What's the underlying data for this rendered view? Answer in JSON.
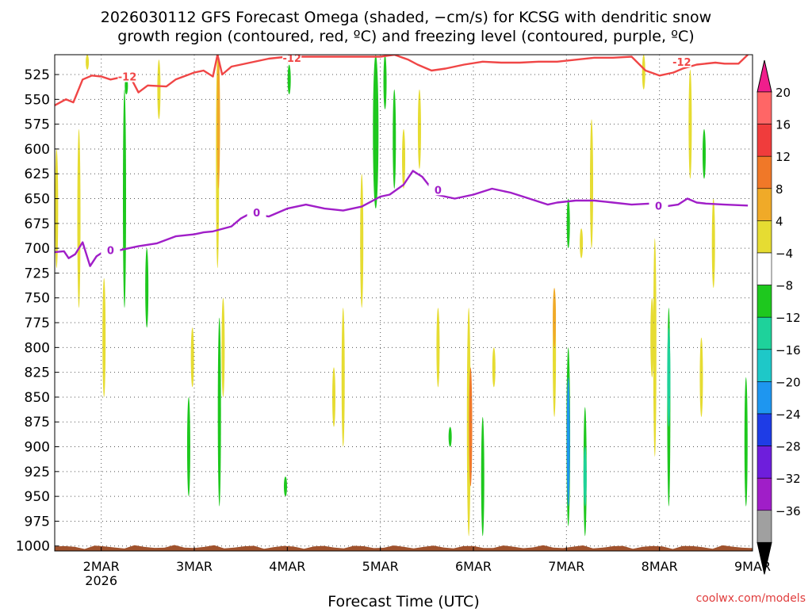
{
  "chart_data": {
    "type": "heatmap",
    "title_line1": "2026030112 GFS Forecast Omega (shaded, −cm/s) for KCSG with dendritic snow",
    "title_line2": "growth region (contoured, red, ºC) and freezing level (contoured, purple, ºC)",
    "xlabel": "Forecast Time (UTC)",
    "credit": "coolwx.com/models",
    "y_ticks": [
      525,
      550,
      575,
      600,
      625,
      650,
      675,
      700,
      725,
      750,
      775,
      800,
      825,
      850,
      875,
      900,
      925,
      950,
      975,
      1000
    ],
    "ylim": [
      1005,
      505
    ],
    "x_ticks": [
      {
        "t": 0.5,
        "label": "2MAR",
        "sub": "2026"
      },
      {
        "t": 1.5,
        "label": "3MAR",
        "sub": ""
      },
      {
        "t": 2.5,
        "label": "4MAR",
        "sub": ""
      },
      {
        "t": 3.5,
        "label": "5MAR",
        "sub": ""
      },
      {
        "t": 4.5,
        "label": "6MAR",
        "sub": ""
      },
      {
        "t": 5.5,
        "label": "7MAR",
        "sub": ""
      },
      {
        "t": 6.5,
        "label": "8MAR",
        "sub": ""
      },
      {
        "t": 7.5,
        "label": "9MAR",
        "sub": ""
      }
    ],
    "xlim": [
      0,
      7.5
    ],
    "colorbar": {
      "labels": [
        "20",
        "16",
        "12",
        "8",
        "4",
        "−4",
        "−8",
        "−12",
        "−16",
        "−20",
        "−24",
        "−28",
        "−32",
        "−36"
      ],
      "colors": [
        "#ff6666",
        "#f03c3c",
        "#f07828",
        "#f0aa28",
        "#e6dc32",
        "#ffffff",
        "#1ec81e",
        "#1ed29b",
        "#1ec8c8",
        "#1e96f0",
        "#1e3ce6",
        "#6e1edc",
        "#a01ec8",
        "#a0a0a0"
      ],
      "top_arrow": "#f01e8c",
      "bottom_arrow": "#000000"
    },
    "series": [
      {
        "name": "-12",
        "color": "#f04646",
        "points": [
          [
            0.0,
            556
          ],
          [
            0.12,
            550
          ],
          [
            0.2,
            553
          ],
          [
            0.3,
            530
          ],
          [
            0.4,
            526
          ],
          [
            0.5,
            527
          ],
          [
            0.6,
            530
          ],
          [
            0.8,
            526
          ],
          [
            0.85,
            534
          ],
          [
            0.9,
            543
          ],
          [
            1.0,
            536
          ],
          [
            1.2,
            537
          ],
          [
            1.3,
            530
          ],
          [
            1.5,
            523
          ],
          [
            1.6,
            521
          ],
          [
            1.7,
            527
          ],
          [
            1.75,
            505
          ],
          [
            1.8,
            525
          ],
          [
            1.9,
            517
          ],
          [
            2.0,
            515
          ],
          [
            2.1,
            513
          ],
          [
            2.3,
            509
          ],
          [
            2.5,
            507
          ],
          [
            2.7,
            507
          ],
          [
            2.9,
            507
          ],
          [
            3.1,
            507
          ],
          [
            3.3,
            507
          ],
          [
            3.5,
            507
          ],
          [
            3.65,
            505
          ],
          [
            3.8,
            510
          ],
          [
            3.9,
            515
          ],
          [
            4.05,
            521
          ],
          [
            4.2,
            519
          ],
          [
            4.4,
            515
          ],
          [
            4.6,
            512
          ],
          [
            4.8,
            513
          ],
          [
            5.0,
            513
          ],
          [
            5.2,
            512
          ],
          [
            5.4,
            512
          ],
          [
            5.6,
            510
          ],
          [
            5.8,
            508
          ],
          [
            6.0,
            508
          ],
          [
            6.2,
            507
          ],
          [
            6.35,
            521
          ],
          [
            6.5,
            526
          ],
          [
            6.65,
            523
          ],
          [
            6.75,
            519
          ],
          [
            6.9,
            515
          ],
          [
            7.1,
            513
          ],
          [
            7.2,
            514
          ],
          [
            7.35,
            514
          ],
          [
            7.45,
            505
          ]
        ],
        "labels": [
          {
            "t": 0.78,
            "p": 527,
            "text": "-12"
          },
          {
            "t": 2.55,
            "p": 508,
            "text": "-12"
          },
          {
            "t": 6.74,
            "p": 512,
            "text": "-12"
          }
        ]
      },
      {
        "name": "0",
        "color": "#a01ec8",
        "points": [
          [
            0.0,
            704
          ],
          [
            0.1,
            703
          ],
          [
            0.15,
            710
          ],
          [
            0.22,
            706
          ],
          [
            0.3,
            694
          ],
          [
            0.38,
            718
          ],
          [
            0.45,
            708
          ],
          [
            0.55,
            702
          ],
          [
            0.7,
            702
          ],
          [
            0.9,
            698
          ],
          [
            1.1,
            695
          ],
          [
            1.3,
            688
          ],
          [
            1.5,
            686
          ],
          [
            1.6,
            684
          ],
          [
            1.7,
            683
          ],
          [
            1.9,
            678
          ],
          [
            2.0,
            670
          ],
          [
            2.1,
            665
          ],
          [
            2.3,
            668
          ],
          [
            2.5,
            660
          ],
          [
            2.7,
            656
          ],
          [
            2.9,
            660
          ],
          [
            3.1,
            662
          ],
          [
            3.3,
            658
          ],
          [
            3.5,
            648
          ],
          [
            3.6,
            646
          ],
          [
            3.75,
            636
          ],
          [
            3.85,
            622
          ],
          [
            3.95,
            628
          ],
          [
            4.05,
            640
          ],
          [
            4.1,
            646
          ],
          [
            4.3,
            650
          ],
          [
            4.5,
            646
          ],
          [
            4.7,
            640
          ],
          [
            4.9,
            644
          ],
          [
            5.1,
            650
          ],
          [
            5.3,
            656
          ],
          [
            5.4,
            654
          ],
          [
            5.6,
            652
          ],
          [
            5.8,
            652
          ],
          [
            6.0,
            654
          ],
          [
            6.2,
            656
          ],
          [
            6.4,
            655
          ],
          [
            6.55,
            658
          ],
          [
            6.7,
            656
          ],
          [
            6.8,
            650
          ],
          [
            6.9,
            654
          ],
          [
            7.0,
            655
          ],
          [
            7.2,
            656
          ],
          [
            7.45,
            657
          ]
        ],
        "labels": [
          {
            "t": 0.6,
            "p": 702,
            "text": "0"
          },
          {
            "t": 2.17,
            "p": 664,
            "text": "0"
          },
          {
            "t": 4.12,
            "p": 641,
            "text": "0"
          },
          {
            "t": 6.49,
            "p": 657,
            "text": "0"
          }
        ]
      }
    ],
    "omega_blobs": [
      {
        "t": 0.35,
        "p1": 505,
        "p2": 520,
        "w": 0.012,
        "color": "#e6dc32"
      },
      {
        "t": 0.02,
        "p1": 600,
        "p2": 720,
        "w": 0.01,
        "color": "#e6dc32"
      },
      {
        "t": 0.26,
        "p1": 580,
        "p2": 760,
        "w": 0.01,
        "color": "#e6dc32"
      },
      {
        "t": 0.53,
        "p1": 730,
        "p2": 850,
        "w": 0.012,
        "color": "#e6dc32"
      },
      {
        "t": 0.75,
        "p1": 540,
        "p2": 760,
        "w": 0.012,
        "color": "#1ec81e"
      },
      {
        "t": 0.77,
        "p1": 528,
        "p2": 545,
        "w": 0.012,
        "color": "#1ec81e"
      },
      {
        "t": 0.99,
        "p1": 700,
        "p2": 780,
        "w": 0.008,
        "color": "#1ec81e"
      },
      {
        "t": 1.12,
        "p1": 510,
        "p2": 570,
        "w": 0.008,
        "color": "#e6dc32"
      },
      {
        "t": 1.48,
        "p1": 780,
        "p2": 840,
        "w": 0.008,
        "color": "#e6dc32"
      },
      {
        "t": 1.75,
        "p1": 505,
        "p2": 720,
        "w": 0.03,
        "color": "#e6dc32"
      },
      {
        "t": 1.76,
        "p1": 505,
        "p2": 640,
        "w": 0.014,
        "color": "#f0aa28"
      },
      {
        "t": 1.77,
        "p1": 770,
        "p2": 960,
        "w": 0.02,
        "color": "#1ec81e"
      },
      {
        "t": 1.81,
        "p1": 750,
        "p2": 850,
        "w": 0.012,
        "color": "#e6dc32"
      },
      {
        "t": 1.44,
        "p1": 850,
        "p2": 950,
        "w": 0.01,
        "color": "#1ec81e"
      },
      {
        "t": 2.52,
        "p1": 515,
        "p2": 545,
        "w": 0.01,
        "color": "#1ec81e"
      },
      {
        "t": 2.48,
        "p1": 930,
        "p2": 950,
        "w": 0.006,
        "color": "#1ec81e"
      },
      {
        "t": 3.0,
        "p1": 820,
        "p2": 880,
        "w": 0.008,
        "color": "#e6dc32"
      },
      {
        "t": 3.1,
        "p1": 760,
        "p2": 900,
        "w": 0.02,
        "color": "#e6dc32"
      },
      {
        "t": 3.3,
        "p1": 625,
        "p2": 760,
        "w": 0.015,
        "color": "#e6dc32"
      },
      {
        "t": 3.45,
        "p1": 505,
        "p2": 660,
        "w": 0.06,
        "color": "#1ec81e"
      },
      {
        "t": 3.65,
        "p1": 540,
        "p2": 640,
        "w": 0.03,
        "color": "#1ec81e"
      },
      {
        "t": 3.55,
        "p1": 505,
        "p2": 560,
        "w": 0.015,
        "color": "#1ec81e"
      },
      {
        "t": 3.75,
        "p1": 580,
        "p2": 640,
        "w": 0.01,
        "color": "#e6dc32"
      },
      {
        "t": 3.92,
        "p1": 540,
        "p2": 620,
        "w": 0.008,
        "color": "#e6dc32"
      },
      {
        "t": 4.12,
        "p1": 760,
        "p2": 840,
        "w": 0.012,
        "color": "#e6dc32"
      },
      {
        "t": 4.25,
        "p1": 880,
        "p2": 900,
        "w": 0.006,
        "color": "#1ec81e"
      },
      {
        "t": 4.45,
        "p1": 760,
        "p2": 990,
        "w": 0.04,
        "color": "#e6dc32"
      },
      {
        "t": 4.47,
        "p1": 820,
        "p2": 940,
        "w": 0.02,
        "color": "#f07828"
      },
      {
        "t": 4.6,
        "p1": 870,
        "p2": 990,
        "w": 0.02,
        "color": "#1ec81e"
      },
      {
        "t": 4.72,
        "p1": 800,
        "p2": 840,
        "w": 0.008,
        "color": "#e6dc32"
      },
      {
        "t": 5.37,
        "p1": 740,
        "p2": 870,
        "w": 0.035,
        "color": "#e6dc32"
      },
      {
        "t": 5.37,
        "p1": 740,
        "p2": 800,
        "w": 0.02,
        "color": "#f0aa28"
      },
      {
        "t": 5.52,
        "p1": 800,
        "p2": 980,
        "w": 0.04,
        "color": "#1ec81e"
      },
      {
        "t": 5.52,
        "p1": 830,
        "p2": 960,
        "w": 0.025,
        "color": "#1e96f0"
      },
      {
        "t": 5.52,
        "p1": 650,
        "p2": 700,
        "w": 0.018,
        "color": "#1ec81e"
      },
      {
        "t": 5.7,
        "p1": 860,
        "p2": 990,
        "w": 0.03,
        "color": "#1ec81e"
      },
      {
        "t": 5.7,
        "p1": 900,
        "p2": 960,
        "w": 0.012,
        "color": "#1ed29b"
      },
      {
        "t": 5.77,
        "p1": 570,
        "p2": 700,
        "w": 0.02,
        "color": "#e6dc32"
      },
      {
        "t": 5.66,
        "p1": 680,
        "p2": 710,
        "w": 0.012,
        "color": "#e6dc32"
      },
      {
        "t": 6.33,
        "p1": 505,
        "p2": 540,
        "w": 0.02,
        "color": "#e6dc32"
      },
      {
        "t": 6.45,
        "p1": 690,
        "p2": 910,
        "w": 0.03,
        "color": "#e6dc32"
      },
      {
        "t": 6.42,
        "p1": 750,
        "p2": 830,
        "w": 0.035,
        "color": "#e6dc32"
      },
      {
        "t": 6.6,
        "p1": 760,
        "p2": 960,
        "w": 0.03,
        "color": "#1ec81e"
      },
      {
        "t": 6.6,
        "p1": 780,
        "p2": 880,
        "w": 0.02,
        "color": "#1ed29b"
      },
      {
        "t": 6.83,
        "p1": 520,
        "p2": 630,
        "w": 0.025,
        "color": "#e6dc32"
      },
      {
        "t": 6.98,
        "p1": 580,
        "p2": 630,
        "w": 0.02,
        "color": "#1ec81e"
      },
      {
        "t": 6.95,
        "p1": 790,
        "p2": 870,
        "w": 0.02,
        "color": "#e6dc32"
      },
      {
        "t": 7.08,
        "p1": 650,
        "p2": 740,
        "w": 0.02,
        "color": "#e6dc32"
      },
      {
        "t": 7.43,
        "p1": 830,
        "p2": 960,
        "w": 0.02,
        "color": "#1ec81e"
      }
    ],
    "ground_color": "#a0522d",
    "grid": true
  }
}
